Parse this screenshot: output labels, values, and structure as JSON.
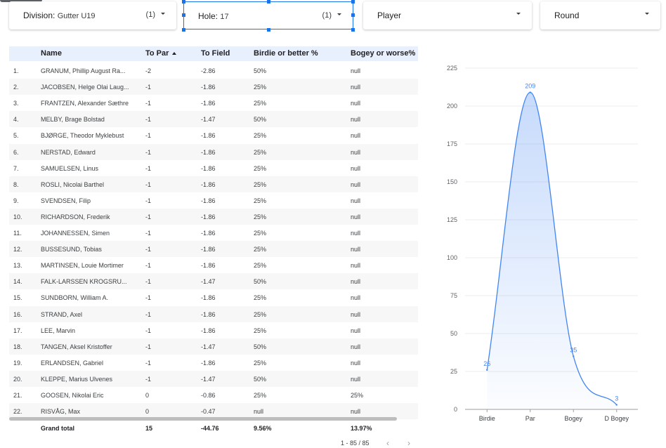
{
  "filters": {
    "division": {
      "label": "Division:",
      "value": "Gutter U19",
      "count": "(1)"
    },
    "hole": {
      "label": "Hole:",
      "value": "17",
      "count": "(1)"
    },
    "player": {
      "label": "Player"
    },
    "round": {
      "label": "Round"
    }
  },
  "table": {
    "headers": {
      "name": "Name",
      "to_par": "To Par",
      "to_field": "To Field",
      "birdie": "Birdie or better %",
      "bogey": "Bogey or worse%"
    },
    "rows": [
      {
        "idx": "1.",
        "name": "GRANUM, Phillip August Ra...",
        "to_par": "-2",
        "to_field": "-2.86",
        "birdie": "50%",
        "bogey": "null"
      },
      {
        "idx": "2.",
        "name": "JACOBSEN, Helge Olai Laug...",
        "to_par": "-1",
        "to_field": "-1.86",
        "birdie": "25%",
        "bogey": "null"
      },
      {
        "idx": "3.",
        "name": "FRANTZEN, Alexander Sæthre",
        "to_par": "-1",
        "to_field": "-1.86",
        "birdie": "25%",
        "bogey": "null"
      },
      {
        "idx": "4.",
        "name": "MELBY, Brage Bolstad",
        "to_par": "-1",
        "to_field": "-1.47",
        "birdie": "50%",
        "bogey": "null"
      },
      {
        "idx": "5.",
        "name": "BJØRGE, Theodor Myklebust",
        "to_par": "-1",
        "to_field": "-1.86",
        "birdie": "25%",
        "bogey": "null"
      },
      {
        "idx": "6.",
        "name": "NERSTAD, Edward",
        "to_par": "-1",
        "to_field": "-1.86",
        "birdie": "25%",
        "bogey": "null"
      },
      {
        "idx": "7.",
        "name": "SAMUELSEN, Linus",
        "to_par": "-1",
        "to_field": "-1.86",
        "birdie": "25%",
        "bogey": "null"
      },
      {
        "idx": "8.",
        "name": "ROSLI, Nicolai Barthel",
        "to_par": "-1",
        "to_field": "-1.86",
        "birdie": "25%",
        "bogey": "null"
      },
      {
        "idx": "9.",
        "name": "SVENDSEN, Filip",
        "to_par": "-1",
        "to_field": "-1.86",
        "birdie": "25%",
        "bogey": "null"
      },
      {
        "idx": "10.",
        "name": "RICHARDSON, Frederik",
        "to_par": "-1",
        "to_field": "-1.86",
        "birdie": "25%",
        "bogey": "null"
      },
      {
        "idx": "11.",
        "name": "JOHANNESSEN, Simen",
        "to_par": "-1",
        "to_field": "-1.86",
        "birdie": "25%",
        "bogey": "null"
      },
      {
        "idx": "12.",
        "name": "BUSSESUND, Tobias",
        "to_par": "-1",
        "to_field": "-1.86",
        "birdie": "25%",
        "bogey": "null"
      },
      {
        "idx": "13.",
        "name": "MARTINSEN, Louie Mortimer",
        "to_par": "-1",
        "to_field": "-1.86",
        "birdie": "25%",
        "bogey": "null"
      },
      {
        "idx": "14.",
        "name": "FALK-LARSSEN KROGSRU...",
        "to_par": "-1",
        "to_field": "-1.47",
        "birdie": "50%",
        "bogey": "null"
      },
      {
        "idx": "15.",
        "name": "SUNDBORN, William A.",
        "to_par": "-1",
        "to_field": "-1.86",
        "birdie": "25%",
        "bogey": "null"
      },
      {
        "idx": "16.",
        "name": "STRAND, Axel",
        "to_par": "-1",
        "to_field": "-1.86",
        "birdie": "25%",
        "bogey": "null"
      },
      {
        "idx": "17.",
        "name": "LEE, Marvin",
        "to_par": "-1",
        "to_field": "-1.86",
        "birdie": "25%",
        "bogey": "null"
      },
      {
        "idx": "18.",
        "name": "TANGEN, Aksel Kristoffer",
        "to_par": "-1",
        "to_field": "-1.47",
        "birdie": "50%",
        "bogey": "null"
      },
      {
        "idx": "19.",
        "name": "ERLANDSEN, Gabriel",
        "to_par": "-1",
        "to_field": "-1.86",
        "birdie": "25%",
        "bogey": "null"
      },
      {
        "idx": "20.",
        "name": "KLEPPE, Marius Ulvenes",
        "to_par": "-1",
        "to_field": "-1.47",
        "birdie": "50%",
        "bogey": "null"
      },
      {
        "idx": "21.",
        "name": "GOOSEN, Nikolai Eric",
        "to_par": "0",
        "to_field": "-0.86",
        "birdie": "25%",
        "bogey": "25%"
      },
      {
        "idx": "22.",
        "name": "RISVÅG, Max",
        "to_par": "0",
        "to_field": "-0.47",
        "birdie": "null",
        "bogey": "null"
      }
    ],
    "total": {
      "label": "Grand total",
      "to_par": "15",
      "to_field": "-44.76",
      "birdie": "9.56%",
      "bogey": "13.97%"
    },
    "pagination": "1 - 85 / 85"
  },
  "icons": {
    "sort": "sort-ascending-icon",
    "prev": "chevron-left-icon",
    "next": "chevron-right-icon",
    "dropdown": "caret-down-icon"
  },
  "colors": {
    "accent": "#1a73e8",
    "series": "#4285f4",
    "header_bg": "#e8f0fe"
  },
  "chart_data": {
    "type": "area",
    "categories": [
      "Birdie",
      "Par",
      "Bogey",
      "D Bogey"
    ],
    "values": [
      26,
      209,
      35,
      3
    ],
    "data_labels": [
      "26",
      "209",
      "35",
      "3"
    ],
    "ylim": [
      0,
      225
    ],
    "yticks": [
      "0",
      "25",
      "50",
      "75",
      "100",
      "125",
      "150",
      "175",
      "200",
      "225"
    ],
    "smooth": true,
    "grid": true
  }
}
